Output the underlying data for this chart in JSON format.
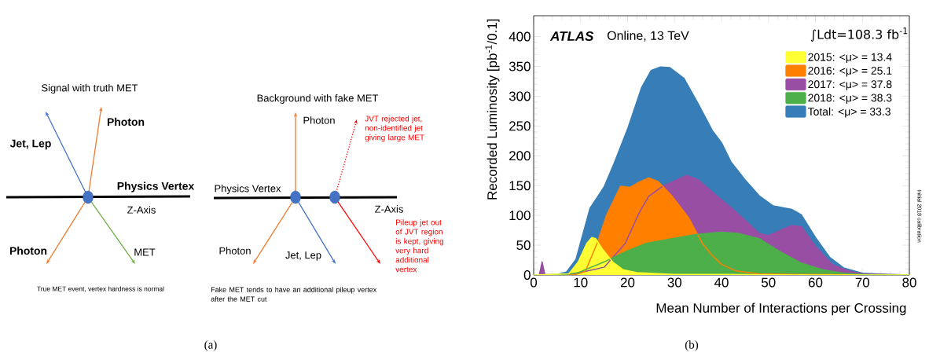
{
  "chart_data": [
    {
      "type": "other",
      "annotations": [
        "Signal with truth MET",
        "Jet, Lep",
        "Photon",
        "Physics Vertex",
        "Z-Axis",
        "Photon",
        "MET",
        "True MET event, vertex hardness  is normal",
        "Background with fake MET",
        "Photon",
        "JVT rejected jet, non-identified jet giving large MET",
        "Physics Vertex",
        "Z-Axis",
        "Photon",
        "Jet, Lep",
        "Pileup jet out of JVT region is kept, giving very hard additional vertex",
        "Fake MET tends to have an additional pileup vertex after the MET cut",
        "(a)"
      ]
    },
    {
      "type": "area",
      "xlabel": "Mean Number of Interactions per Crossing",
      "ylabel": "Recorded Luminosity [pb$^{-1}$/0.1]",
      "xlim": [
        0,
        80
      ],
      "ylim": [
        0,
        435
      ],
      "xticks": [
        0,
        10,
        20,
        30,
        40,
        50,
        60,
        70,
        80
      ],
      "yticks": [
        0,
        50,
        100,
        150,
        200,
        250,
        300,
        350,
        400
      ],
      "legend": "top right",
      "series": [
        {
          "name": "2015: <μ> = 13.4",
          "color": "#ffff33",
          "x": [
            0,
            7.5,
            9.5,
            11.3,
            12.4,
            13.2,
            14.6,
            16.8,
            19,
            22,
            30,
            40,
            60,
            80
          ],
          "values": [
            0,
            2,
            22,
            53,
            63,
            61,
            44,
            22,
            9,
            4,
            1,
            1,
            0,
            0
          ]
        },
        {
          "name": "2016: <μ> = 25.1",
          "color": "#ff7f00",
          "x": [
            0,
            9,
            11,
            13.5,
            15.5,
            18.5,
            20.5,
            22.5,
            24.5,
            26.5,
            29.5,
            33,
            36,
            38,
            40,
            43,
            48,
            55,
            80
          ],
          "values": [
            0,
            1,
            6,
            53,
            100,
            149,
            147,
            156,
            163,
            157,
            132,
            96,
            52,
            33,
            18,
            7,
            2,
            1,
            0
          ]
        },
        {
          "name": "2017: <μ> = 37.8",
          "color": "#984ea3",
          "x": [
            0,
            1.2,
            1.8,
            2.4,
            8,
            15,
            19.5,
            22.5,
            24.5,
            27.5,
            32.5,
            35,
            38.5,
            42.5,
            48,
            50,
            52.5,
            55,
            57,
            60,
            63.5,
            67,
            70,
            75,
            80
          ],
          "values": [
            0,
            0,
            22,
            0,
            1,
            13,
            53,
            105,
            132,
            149,
            167,
            160,
            136,
            110,
            70,
            66,
            75,
            83,
            81,
            48,
            18,
            7,
            2,
            1,
            0
          ]
        },
        {
          "name": "2018: <μ> = 38.3",
          "color": "#4daf4a",
          "x": [
            0,
            7,
            9.5,
            15,
            19.5,
            24,
            29.5,
            34.5,
            37,
            40,
            43.5,
            48,
            52.5,
            57,
            61.5,
            66,
            70,
            80
          ],
          "values": [
            0,
            1,
            4,
            22,
            39,
            53,
            61,
            68,
            70,
            72,
            70,
            61,
            39,
            20,
            9,
            3,
            1,
            0
          ]
        },
        {
          "name": "Total: <μ> = 33.3",
          "color": "#377eb8",
          "x": [
            0,
            5,
            7,
            9,
            12,
            15,
            17,
            20,
            23,
            25,
            27,
            29,
            32,
            35,
            38,
            40,
            42,
            45,
            48,
            51,
            55,
            57,
            60,
            63,
            66,
            70,
            75,
            80
          ],
          "values": [
            0,
            1,
            5,
            26,
            112,
            148,
            185,
            245,
            315,
            343,
            349,
            348,
            330,
            288,
            243,
            222,
            190,
            160,
            133,
            116,
            110,
            101,
            63,
            30,
            12,
            3,
            1,
            0
          ]
        }
      ],
      "annotations": [
        "ATLAS",
        "Online, 13 TeV",
        "∫Ldt=108.3 fb$^{-1}$",
        "Initial 2018 calibration",
        "(b)"
      ]
    }
  ]
}
